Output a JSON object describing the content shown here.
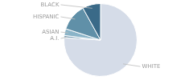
{
  "chart_data": {
    "type": "pie",
    "categories": [
      "WHITE",
      "A.I.",
      "ASIAN",
      "HISPANIC",
      "BLACK"
    ],
    "values": [
      76,
      1,
      3,
      12,
      8
    ],
    "colors": [
      "#d5dce8",
      "#7a9fb5",
      "#8ab4c8",
      "#6090a8",
      "#3a6a88"
    ]
  }
}
